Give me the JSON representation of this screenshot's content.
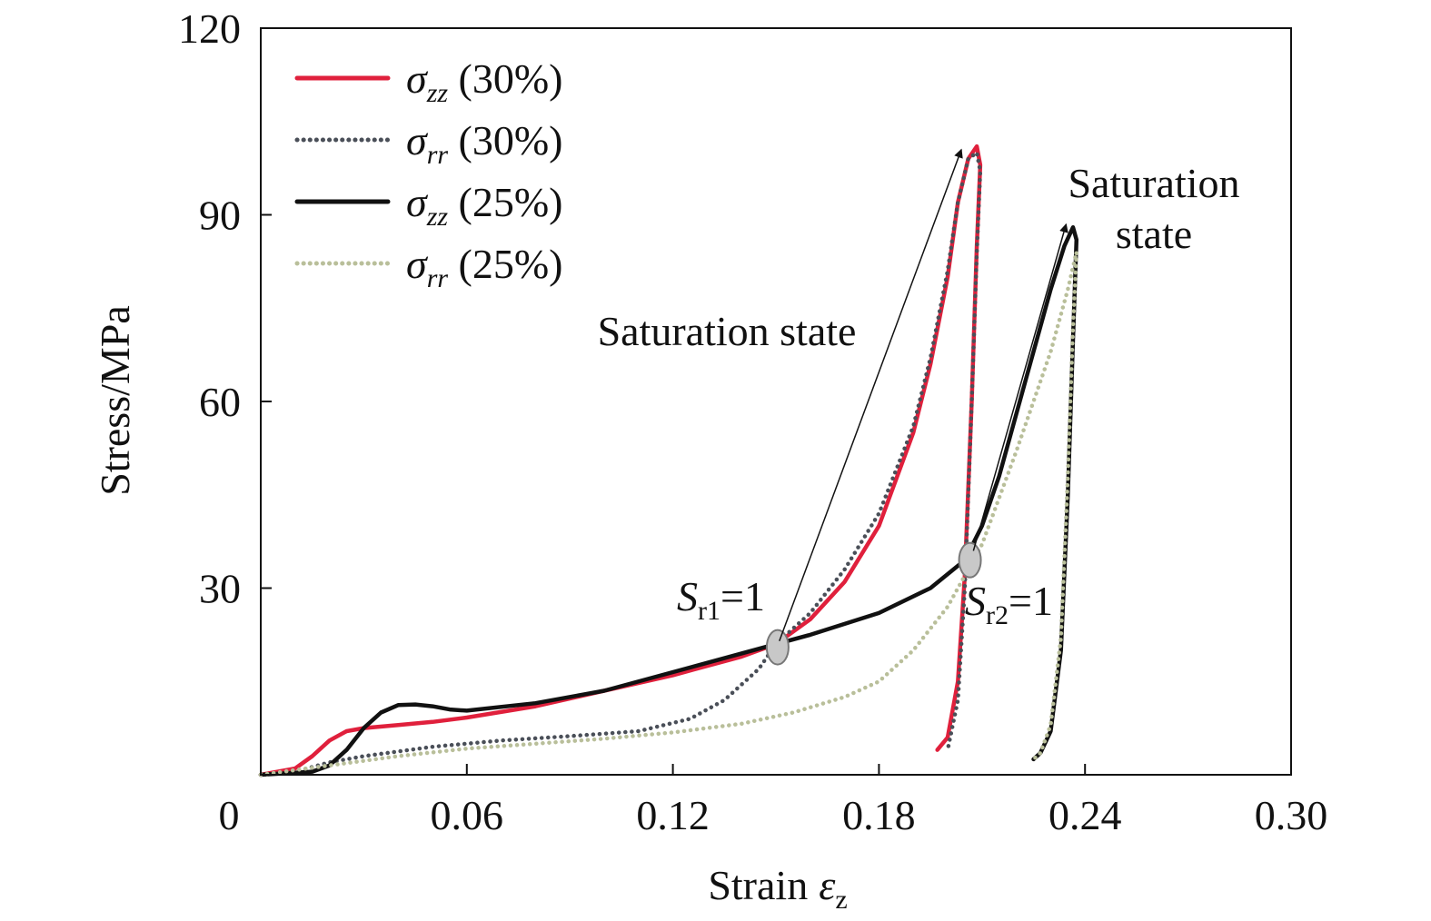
{
  "chart_data": {
    "type": "line",
    "title": "",
    "xlabel": "Strain",
    "xlabel_symbol": "ε",
    "xlabel_sub": "z",
    "ylabel": "Stress/MPa",
    "xlim": [
      0,
      0.3
    ],
    "ylim": [
      0,
      120
    ],
    "xticks": [
      0,
      0.06,
      0.12,
      0.18,
      0.24,
      0.3
    ],
    "xtick_labels": [
      "0",
      "0.06",
      "0.12",
      "0.18",
      "0.24",
      "0.30"
    ],
    "yticks": [
      30,
      60,
      90,
      120
    ],
    "ytick_labels": [
      "30",
      "60",
      "90",
      "120"
    ],
    "grid": false,
    "legend_position": "top-left",
    "series": [
      {
        "name": "σ_zz (30%)",
        "legend_symbol": "σ",
        "legend_sub": "zz",
        "legend_suffix": " (30%)",
        "color": "#e0203c",
        "style": "solid",
        "x": [
          0.0,
          0.01,
          0.015,
          0.02,
          0.025,
          0.03,
          0.04,
          0.05,
          0.06,
          0.08,
          0.1,
          0.12,
          0.14,
          0.15,
          0.16,
          0.17,
          0.18,
          0.19,
          0.195,
          0.2,
          0.203,
          0.206,
          0.2085,
          0.2095,
          0.2085,
          0.207,
          0.205,
          0.203,
          0.2,
          0.197
        ],
        "y": [
          0,
          1,
          3,
          5.5,
          7,
          7.5,
          8,
          8.5,
          9.2,
          11,
          13.5,
          16,
          19,
          21,
          25,
          31,
          40,
          55,
          66,
          80,
          92,
          99,
          101,
          98,
          85,
          60,
          32,
          15,
          6,
          4
        ]
      },
      {
        "name": "σ_rr (30%)",
        "legend_symbol": "σ",
        "legend_sub": "rr",
        "legend_suffix": " (30%)",
        "color": "#4a4f58",
        "style": "dotted",
        "x": [
          0.0,
          0.01,
          0.02,
          0.03,
          0.05,
          0.07,
          0.09,
          0.11,
          0.125,
          0.135,
          0.145,
          0.15,
          0.16,
          0.17,
          0.18,
          0.19,
          0.195,
          0.2,
          0.203,
          0.206,
          0.2085,
          0.2095,
          0.2085,
          0.207,
          0.205,
          0.203,
          0.2
        ],
        "y": [
          0,
          0.5,
          2,
          3,
          4.5,
          5.5,
          6.2,
          7,
          9,
          12,
          17,
          21,
          26,
          33,
          42,
          56,
          67,
          81,
          92,
          99,
          100,
          97,
          84,
          60,
          30,
          12,
          4
        ]
      },
      {
        "name": "σ_zz (25%)",
        "legend_symbol": "σ",
        "legend_sub": "zz",
        "legend_suffix": " (25%)",
        "color": "#111111",
        "style": "solid",
        "x": [
          0.0,
          0.015,
          0.02,
          0.025,
          0.03,
          0.035,
          0.04,
          0.045,
          0.05,
          0.055,
          0.06,
          0.08,
          0.1,
          0.12,
          0.14,
          0.16,
          0.18,
          0.195,
          0.205,
          0.21,
          0.215,
          0.22,
          0.225,
          0.23,
          0.234,
          0.2365,
          0.2375,
          0.2365,
          0.235,
          0.233,
          0.23,
          0.227,
          0.225
        ],
        "y": [
          0,
          0.5,
          1.5,
          4,
          7.5,
          10,
          11.2,
          11.3,
          11,
          10.5,
          10.3,
          11.5,
          13.5,
          16.5,
          19.5,
          22.5,
          26,
          30,
          34.5,
          40,
          48,
          58,
          68,
          78,
          85,
          88,
          86,
          70,
          45,
          20,
          7,
          3.5,
          2.5
        ]
      },
      {
        "name": "σ_rr (25%)",
        "legend_symbol": "σ",
        "legend_sub": "rr",
        "legend_suffix": " (25%)",
        "color": "#b9bf9a",
        "style": "dotted",
        "x": [
          0.0,
          0.02,
          0.04,
          0.06,
          0.08,
          0.1,
          0.12,
          0.14,
          0.155,
          0.17,
          0.18,
          0.19,
          0.2,
          0.21,
          0.22,
          0.23,
          0.235,
          0.2375,
          0.2365,
          0.235,
          0.233,
          0.23,
          0.227,
          0.225
        ],
        "y": [
          0,
          1.5,
          3,
          4.2,
          5,
          5.8,
          6.8,
          8.2,
          10,
          12.5,
          15,
          20,
          27,
          37,
          52,
          68,
          78,
          84,
          72,
          48,
          22,
          8,
          3.5,
          2.5
        ]
      }
    ],
    "annotations": [
      {
        "id": "saturation-1",
        "text": "Saturation state"
      },
      {
        "id": "saturation-2",
        "lines": [
          "Saturation",
          "state"
        ]
      },
      {
        "id": "sr1",
        "symbol": "S",
        "sub": "r1",
        "suffix": "=1",
        "point": [
          0.1505,
          20.5
        ]
      },
      {
        "id": "sr2",
        "symbol": "S",
        "sub": "r2",
        "suffix": "=1",
        "point": [
          0.2065,
          34.5
        ]
      }
    ],
    "arrows": [
      {
        "from": [
          0.151,
          21.5
        ],
        "to": [
          0.204,
          100.5
        ]
      },
      {
        "from": [
          0.2075,
          36
        ],
        "to": [
          0.2345,
          88.5
        ]
      }
    ]
  }
}
